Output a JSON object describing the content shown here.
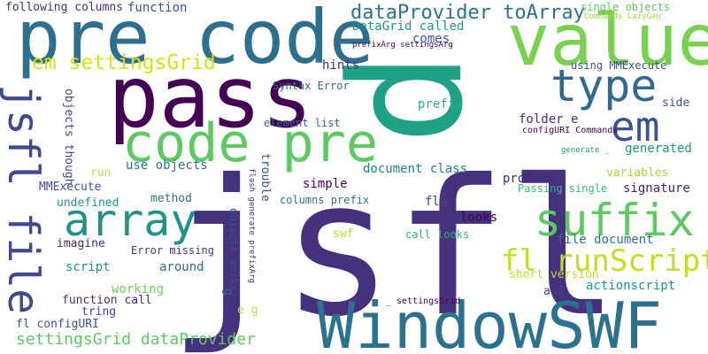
{
  "words": [
    {
      "text": "jsfl",
      "color": "#46317e"
    },
    {
      "text": "pass",
      "color": "#440154"
    },
    {
      "text": "pre code",
      "color": "#2e6f8e"
    },
    {
      "text": "value",
      "color": "#7ad151"
    },
    {
      "text": "code pre",
      "color": "#5ec962"
    },
    {
      "text": "WindowSWF",
      "color": "#2c728e"
    },
    {
      "text": "p",
      "color": "#1fa187"
    },
    {
      "text": "type",
      "color": "#31688e"
    },
    {
      "text": "array",
      "color": "#21918c"
    },
    {
      "text": "suffix",
      "color": "#5ec962"
    },
    {
      "text": "em",
      "color": "#3b528b"
    },
    {
      "text": "jsfl file",
      "color": "#3e4a89"
    },
    {
      "text": "fl runScript",
      "color": "#bddf26"
    },
    {
      "text": "dataProvider toArray",
      "color": "#2c728e"
    },
    {
      "text": "em settingsGrid",
      "color": "#d5e21a"
    },
    {
      "text": "settingsGrid dataProvider",
      "color": "#5ec962"
    },
    {
      "text": "following columns",
      "color": "#472d7b"
    },
    {
      "text": "function",
      "color": "#3b528b"
    },
    {
      "text": "DataGrid called",
      "color": "#21918c"
    },
    {
      "text": "comes",
      "color": "#3b528b"
    },
    {
      "text": "prefixArg settingsArg",
      "color": "#440154"
    },
    {
      "text": "single objects",
      "color": "#5ec962"
    },
    {
      "text": "Commands LazyGen",
      "color": "#a0da39"
    },
    {
      "text": "hints",
      "color": "#472d7b"
    },
    {
      "text": "using MMExecute",
      "color": "#3b528b"
    },
    {
      "text": "Syntax Error",
      "color": "#31688e"
    },
    {
      "text": "prefix",
      "color": "#2db27d"
    },
    {
      "text": "side",
      "color": "#3b528b"
    },
    {
      "text": "element list",
      "color": "#31688e"
    },
    {
      "text": "folder e",
      "color": "#472d7b"
    },
    {
      "text": "configURI Commands",
      "color": "#440154"
    },
    {
      "text": "generate _",
      "color": "#21918c"
    },
    {
      "text": "generated",
      "color": "#21918c"
    },
    {
      "text": "objects though",
      "color": "#3e4a89"
    },
    {
      "text": "run",
      "color": "#bddf26"
    },
    {
      "text": "use objects",
      "color": "#2c728e"
    },
    {
      "text": "trouble",
      "color": "#3b528b"
    },
    {
      "text": "document class",
      "color": "#287c8e"
    },
    {
      "text": "variables",
      "color": "#a0da39"
    },
    {
      "text": "problem",
      "color": "#482878"
    },
    {
      "text": "MMExecute",
      "color": "#3b528b"
    },
    {
      "text": "simple",
      "color": "#440154"
    },
    {
      "text": "Passing single",
      "color": "#35b779"
    },
    {
      "text": "signature",
      "color": "#481f70"
    },
    {
      "text": "method",
      "color": "#2c728e"
    },
    {
      "text": "columns prefix",
      "color": "#2c728e"
    },
    {
      "text": "undefined",
      "color": "#21918c"
    },
    {
      "text": "fla",
      "color": "#3e4a89"
    },
    {
      "text": "looks",
      "color": "#440154"
    },
    {
      "text": "Error missing",
      "color": "#46327e"
    },
    {
      "text": "imagine",
      "color": "#482878"
    },
    {
      "text": "swf",
      "color": "#bddf26"
    },
    {
      "text": "call looks",
      "color": "#2db27d"
    },
    {
      "text": "file document",
      "color": "#2c728e"
    },
    {
      "text": "script",
      "color": "#21918c"
    },
    {
      "text": "around",
      "color": "#31688e"
    },
    {
      "text": "short version",
      "color": "#b5de2b"
    },
    {
      "text": "objects works",
      "color": "#3b528b"
    },
    {
      "text": "flash generate prefixArg",
      "color": "#472d7b"
    },
    {
      "text": "g",
      "color": "#2c728e"
    },
    {
      "text": "working",
      "color": "#6ccd5a"
    },
    {
      "text": "as3",
      "color": "#414487"
    },
    {
      "text": "actionscript",
      "color": "#21918c"
    },
    {
      "text": "function call",
      "color": "#472d7b"
    },
    {
      "text": "_ settingsGrid",
      "color": "#440154"
    },
    {
      "text": "tring",
      "color": "#3e4a89"
    },
    {
      "text": "e g",
      "color": "#bddf26"
    },
    {
      "text": "fl configURI",
      "color": "#3b528b"
    }
  ]
}
